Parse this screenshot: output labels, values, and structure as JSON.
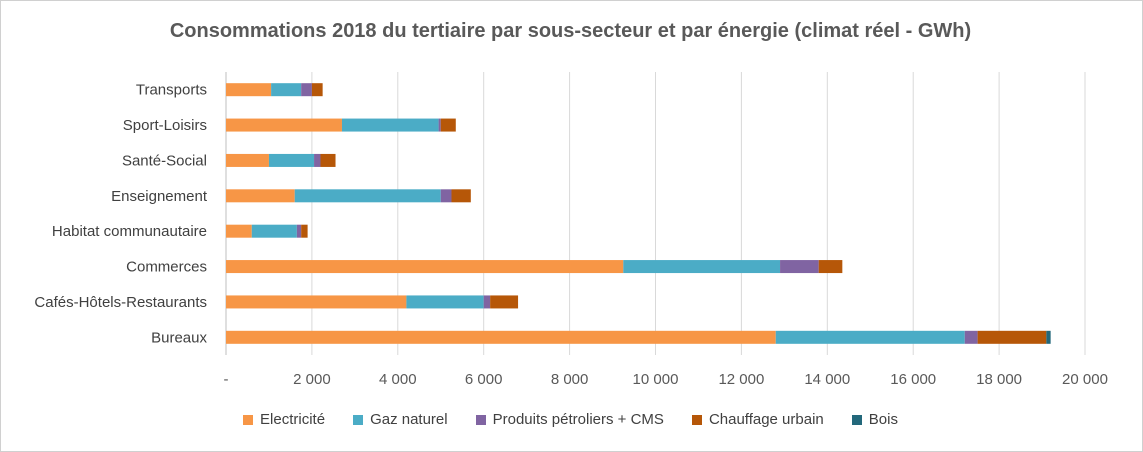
{
  "chart_data": {
    "type": "bar",
    "orientation": "horizontal",
    "stacked": true,
    "title": "Consommations  2018 du tertiaire par sous-secteur et par énergie (climat réel - GWh)",
    "categories": [
      "Transports",
      "Sport-Loisirs",
      "Santé-Social",
      "Enseignement",
      "Habitat communautaire",
      "Commerces",
      "Cafés-Hôtels-Restaurants",
      "Bureaux"
    ],
    "series": [
      {
        "name": "Electricité",
        "color": "#F79646",
        "values": [
          1050,
          2700,
          1000,
          1600,
          600,
          9250,
          4200,
          12800
        ]
      },
      {
        "name": "Gaz naturel",
        "color": "#4BACC6",
        "values": [
          700,
          2250,
          1050,
          3400,
          1050,
          3650,
          1800,
          4400
        ]
      },
      {
        "name": "Produits pétroliers + CMS",
        "color": "#8064A2",
        "values": [
          250,
          50,
          150,
          250,
          100,
          900,
          150,
          300
        ]
      },
      {
        "name": "Chauffage urbain",
        "color": "#B65708",
        "values": [
          250,
          350,
          350,
          450,
          150,
          550,
          650,
          1600
        ]
      },
      {
        "name": "Bois",
        "color": "#23687B",
        "values": [
          0,
          0,
          0,
          0,
          0,
          0,
          0,
          100
        ]
      }
    ],
    "xlim": [
      0,
      20000
    ],
    "xticks": [
      0,
      2000,
      4000,
      6000,
      8000,
      10000,
      12000,
      14000,
      16000,
      18000,
      20000
    ],
    "xtick_labels": [
      "-",
      "2 000",
      "4 000",
      "6 000",
      "8 000",
      "10 000",
      "12 000",
      "14 000",
      "16 000",
      "18 000",
      "20 000"
    ],
    "grid": "vertical",
    "legend": "bottom"
  }
}
